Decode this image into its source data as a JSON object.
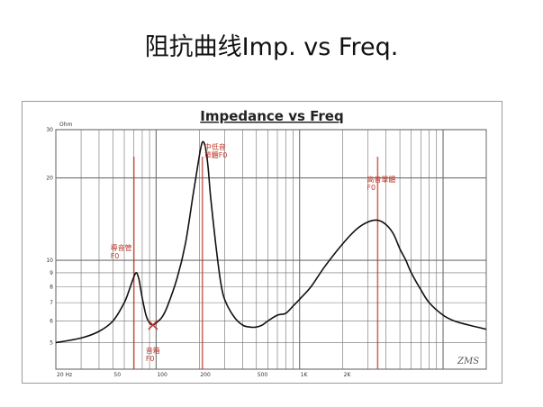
{
  "page": {
    "title": "阻抗曲线Imp. vs Freq."
  },
  "chart_data": {
    "type": "line",
    "title": "Impedance vs Freq",
    "xlabel": "",
    "ylabel": "",
    "y_unit": "Ohm",
    "x_scale": "log",
    "y_scale": "log",
    "xlim": [
      20,
      20000
    ],
    "ylim": [
      4,
      30
    ],
    "x_tick_labels": [
      {
        "value": 20,
        "label": "20 Hz"
      },
      {
        "value": 50,
        "label": "50"
      },
      {
        "value": 100,
        "label": "100"
      },
      {
        "value": 200,
        "label": "200"
      },
      {
        "value": 500,
        "label": "500"
      },
      {
        "value": 1000,
        "label": "1K"
      },
      {
        "value": 2000,
        "label": "2K"
      }
    ],
    "y_tick_labels": [
      {
        "value": 30,
        "label": "30"
      },
      {
        "value": 20,
        "label": "20"
      },
      {
        "value": 10,
        "label": "10"
      },
      {
        "value": 9,
        "label": "9"
      },
      {
        "value": 8,
        "label": "8"
      },
      {
        "value": 7,
        "label": "7"
      },
      {
        "value": 6,
        "label": "6"
      },
      {
        "value": 5,
        "label": "5"
      }
    ],
    "grid": true,
    "series": [
      {
        "x": [
          20,
          30,
          40,
          50,
          60,
          65,
          70,
          73,
          76,
          80,
          85,
          90,
          95,
          100,
          110,
          120,
          140,
          160,
          180,
          200,
          210,
          220,
          230,
          240,
          260,
          280,
          300,
          350,
          400,
          450,
          500,
          550,
          600,
          700,
          800,
          900,
          1000,
          1200,
          1500,
          2000,
          2500,
          3000,
          3500,
          4000,
          4500,
          5000,
          5500,
          6000,
          7000,
          8000,
          10000,
          12000,
          15000,
          20000
        ],
        "values": [
          5.0,
          5.2,
          5.5,
          6.0,
          7.0,
          7.8,
          8.7,
          9.0,
          8.5,
          7.3,
          6.3,
          5.9,
          5.8,
          5.9,
          6.2,
          6.8,
          8.6,
          11.5,
          17.0,
          24.0,
          27.0,
          26.0,
          22.0,
          17.0,
          11.5,
          8.5,
          7.2,
          6.2,
          5.8,
          5.7,
          5.7,
          5.8,
          6.0,
          6.3,
          6.4,
          6.8,
          7.2,
          8.0,
          9.5,
          11.5,
          13.0,
          13.8,
          14.0,
          13.5,
          12.5,
          11.0,
          10.0,
          9.0,
          7.8,
          7.0,
          6.3,
          6.0,
          5.8,
          5.6
        ]
      }
    ],
    "annotations": [
      {
        "lines": [
          "導音管",
          "F0"
        ],
        "x": 70,
        "marker_x": 70
      },
      {
        "lines": [
          "音箱",
          "F0"
        ],
        "x": 95,
        "marker_x": 95
      },
      {
        "lines": [
          "中低音",
          "單體F0"
        ],
        "x": 210,
        "marker_x": 210
      },
      {
        "lines": [
          "高音單體",
          "F0"
        ],
        "x": 3500,
        "marker_x": 3500
      }
    ],
    "signature": "ZMS",
    "colors": {
      "curve": "#111111",
      "annotation": "#c0392b",
      "grid": "#6f6f6f"
    }
  }
}
